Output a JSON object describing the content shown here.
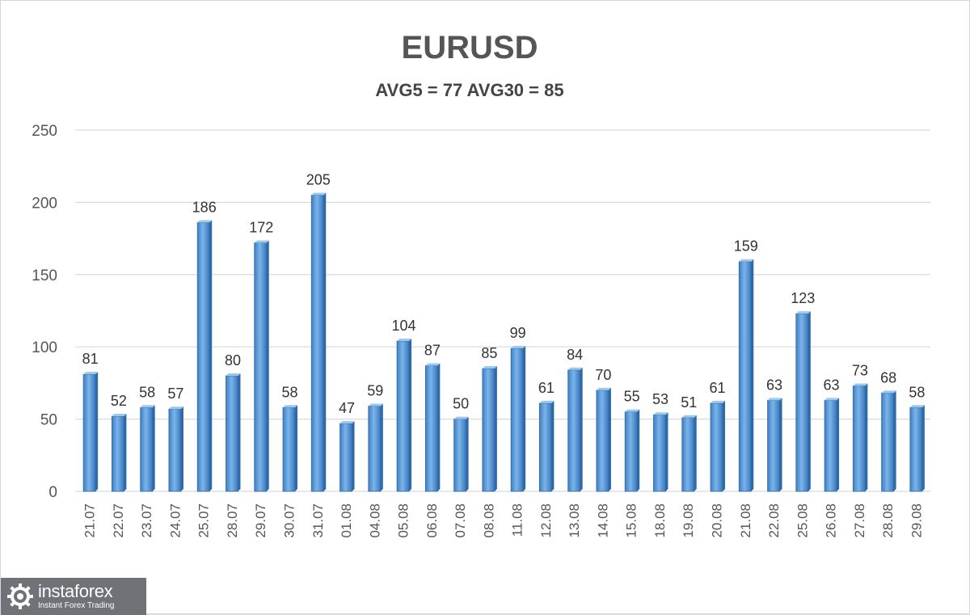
{
  "chart_data": {
    "type": "bar",
    "title": "EURUSD",
    "subtitle": "AVG5 = 77 AVG30 = 85",
    "categories": [
      "21.07",
      "22.07",
      "23.07",
      "24.07",
      "25.07",
      "28.07",
      "29.07",
      "30.07",
      "31.07",
      "01.08",
      "04.08",
      "05.08",
      "06.08",
      "07.08",
      "08.08",
      "11.08",
      "12.08",
      "13.08",
      "14.08",
      "15.08",
      "18.08",
      "19.08",
      "20.08",
      "21.08",
      "22.08",
      "25.08",
      "26.08",
      "27.08",
      "28.08",
      "29.08"
    ],
    "values": [
      81,
      52,
      58,
      57,
      186,
      80,
      172,
      58,
      205,
      47,
      59,
      104,
      87,
      50,
      85,
      99,
      61,
      84,
      70,
      55,
      53,
      51,
      61,
      159,
      63,
      123,
      63,
      73,
      68,
      58
    ],
    "yticks": [
      0,
      50,
      100,
      150,
      200,
      250
    ],
    "ylim": [
      0,
      250
    ],
    "grid": true,
    "bar_color": "#5b9bd5",
    "data_labels": true
  },
  "logo": {
    "brand": "instaforex",
    "tagline": "Instant Forex Trading"
  }
}
